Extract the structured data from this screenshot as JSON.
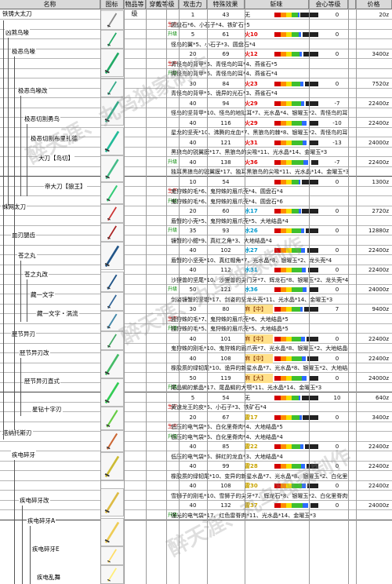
{
  "headers": {
    "name": "名称",
    "icon": "图标",
    "rarity": "物品等级",
    "wear": "穿戴等级",
    "attack": "攻击力",
    "effect": "特殊效果",
    "sharpness": "斩味",
    "affinity": "会心等级",
    "slots": "",
    "price": "价格"
  },
  "watermark": "醉天涯、丸乌独家制作",
  "weapons": [
    {
      "name": "铁铸大太刀",
      "rarity": "1"
    },
    {
      "name": "凶煞鸟喙",
      "rarity": "5"
    },
    {
      "name": "极恶鸟喙",
      "rarity": "20"
    },
    {
      "name": "极恶鸟喙改",
      "rarity": "30"
    },
    {
      "name": "极恶切割勇鸟",
      "rarity": "40"
    },
    {
      "name": "极恶切割布里扎德",
      "rarity": "45"
    },
    {
      "name": "大刀【鸟切】",
      "rarity": "50"
    },
    {
      "name": "帝大刀【狼王】",
      "rarity": "55"
    },
    {
      "name": "蛛网太刀",
      "rarity": "10"
    },
    {
      "name": "血刃腿齿",
      "rarity": "20"
    },
    {
      "name": "苍之丸",
      "rarity": "35"
    },
    {
      "name": "苍之丸改",
      "rarity": "40"
    },
    {
      "name": "藏一文字",
      "rarity": "45"
    },
    {
      "name": "藏一文字・涡流",
      "rarity": "50"
    },
    {
      "name": "胫节异刃",
      "rarity": "30"
    },
    {
      "name": "胫节异刃改",
      "rarity": "40"
    },
    {
      "name": "胫节异刃直式",
      "rarity": "45"
    },
    {
      "name": "星钻十字刃",
      "rarity": "50"
    },
    {
      "name": "塔纳托斯刃",
      "rarity": "5"
    },
    {
      "name": "疾电碎牙",
      "rarity": "20"
    },
    {
      "name": "疾电碎牙改",
      "rarity": "40"
    },
    {
      "name": "疾电碎牙A",
      "rarity": "40"
    },
    {
      "name": "疾电碎牙E",
      "rarity": "50"
    },
    {
      "name": "疾电乱舞",
      "rarity": "55"
    }
  ],
  "rows": [
    {
      "type": "",
      "lvl": "1",
      "atk": "43",
      "eff": "无",
      "aff": "0",
      "slot": "",
      "price": "20z",
      "mat": ""
    },
    {
      "type": "生产",
      "lvl": "5",
      "atk": "",
      "eff": "",
      "aff": "",
      "slot": "",
      "price": "640z",
      "mat": "圆盘石*6、小石子*4、铁矿石*5"
    },
    {
      "type": "升级",
      "lvl": "5",
      "atk": "61",
      "eff": "火10",
      "aff": "0",
      "slot": "",
      "price": "",
      "mat": ""
    },
    {
      "type": "",
      "lvl": "",
      "atk": "",
      "eff": "",
      "aff": "",
      "slot": "",
      "price": "",
      "mat": "怪鸟的翼*5、小石子*3、圆盘石*4"
    },
    {
      "type": "",
      "lvl": "20",
      "atk": "69",
      "eff": "火12",
      "aff": "0",
      "slot": "",
      "price": "3400z",
      "mat": ""
    },
    {
      "type": "生产",
      "lvl": "",
      "atk": "",
      "eff": "",
      "aff": "",
      "slot": "",
      "price": "2720z",
      "mat": "青怪鸟的背甲*6、青怪鸟的耳*4、燕雀石*5"
    },
    {
      "type": "升级",
      "lvl": "",
      "atk": "",
      "eff": "",
      "aff": "",
      "slot": "",
      "price": "",
      "mat": "青怪鸟的背甲*6、青怪鸟的耳*4、燕雀石*4"
    },
    {
      "type": "",
      "lvl": "30",
      "atk": "84",
      "eff": "火23",
      "aff": "0",
      "slot": "",
      "price": "7520z",
      "mat": ""
    },
    {
      "type": "",
      "lvl": "",
      "atk": "",
      "eff": "",
      "aff": "",
      "slot": "",
      "price": "",
      "mat": "青怪鸟的背甲*5、诡异的光石*3、燕雀石*4"
    },
    {
      "type": "",
      "lvl": "40",
      "atk": "94",
      "eff": "火29",
      "aff": "-7",
      "slot": "",
      "price": "22400z",
      "mat": ""
    },
    {
      "type": "",
      "lvl": "",
      "atk": "",
      "eff": "",
      "aff": "",
      "slot": "",
      "price": "",
      "mat": "怪鸟的坚背甲*10、怪鸟的地狱耳*7、光水晶*4、银曜玉*2、青怪鸟的耳*4"
    },
    {
      "type": "",
      "lvl": "40",
      "atk": "116",
      "eff": "火29",
      "aff": "-10",
      "slot": "",
      "price": "22400z",
      "mat": ""
    },
    {
      "type": "",
      "lvl": "",
      "atk": "",
      "eff": "",
      "aff": "",
      "slot": "",
      "price": "",
      "mat": "星龙的坚壳*10、沸腾的龙血*7、黑狼鸟的棘*8、银曜玉*2、青怪鸟的耳*4"
    },
    {
      "type": "",
      "lvl": "40",
      "atk": "121",
      "eff": "火31",
      "aff": "-13",
      "slot": "",
      "price": "24000z",
      "mat": ""
    },
    {
      "type": "",
      "lvl": "",
      "atk": "",
      "eff": "",
      "aff": "",
      "slot": "",
      "price": "",
      "mat": "黑狼鸟的锐翼膜*17、黑狼鸟的尖喙*11、光水晶*14、金曜玉*3"
    },
    {
      "type": "升级",
      "lvl": "40",
      "atk": "138",
      "eff": "火36",
      "aff": "-7",
      "slot": "",
      "price": "22400z",
      "mat": ""
    },
    {
      "type": "",
      "lvl": "55",
      "atk": "",
      "eff": "",
      "aff": "",
      "slot": "",
      "price": "",
      "mat": "独耳黑狼鸟的锐翼膜*17、独耳黑狼鸟的尖喙*11、光水晶*14、金曜玉*3"
    },
    {
      "type": "",
      "lvl": "10",
      "atk": "54",
      "eff": "",
      "aff": "0",
      "slot": "",
      "price": "1300z",
      "mat": ""
    },
    {
      "type": "生产",
      "lvl": "",
      "atk": "",
      "eff": "",
      "aff": "",
      "slot": "",
      "price": "1040z",
      "mat": "鬼狩蛛的毛*6、鬼狩蛛的眉爪壳*4、圆盘石*4"
    },
    {
      "type": "升级",
      "lvl": "",
      "atk": "",
      "eff": "",
      "aff": "",
      "slot": "",
      "price": "",
      "mat": "鬼狩蛛的毛*6、鬼狩蛛的眉爪壳*4、圆盘石*6"
    },
    {
      "type": "",
      "lvl": "20",
      "atk": "60",
      "eff": "水17",
      "aff": "0",
      "slot": "",
      "price": "2720z",
      "mat": ""
    },
    {
      "type": "",
      "lvl": "",
      "atk": "",
      "eff": "",
      "aff": "",
      "slot": "",
      "price": "",
      "mat": "盾蟹的小壳*5、鬼狩蛛的眉爪壳*5、大地结晶*4"
    },
    {
      "type": "升级",
      "lvl": "35",
      "atk": "93",
      "eff": "水26",
      "aff": "0",
      "slot": "",
      "price": "12880z",
      "mat": ""
    },
    {
      "type": "",
      "lvl": "",
      "atk": "",
      "eff": "",
      "aff": "",
      "slot": "",
      "price": "",
      "mat": "镰蟹的小鳃*9、真红之角*3、大地结晶*4"
    },
    {
      "type": "",
      "lvl": "40",
      "atk": "102",
      "eff": "水27",
      "aff": "0",
      "slot": "",
      "price": "22400z",
      "mat": ""
    },
    {
      "type": "",
      "lvl": "",
      "atk": "",
      "eff": "",
      "aff": "",
      "slot": "",
      "price": "",
      "mat": "盾蟹的小坚壳*10、真红帽角*7、光水晶*8、银曜玉*2、龙头壳*4"
    },
    {
      "type": "",
      "lvl": "40",
      "atk": "112",
      "eff": "水31",
      "aff": "0",
      "slot": "",
      "price": "22400z",
      "mat": ""
    },
    {
      "type": "",
      "lvl": "",
      "atk": "",
      "eff": "",
      "aff": "",
      "slot": "",
      "price": "",
      "mat": "沙狸兽的坚尾*10、沙狸兽的尖门牙*7、辉龙石*8、银曜玉*2、龙头壳*4"
    },
    {
      "type": "升级",
      "lvl": "50",
      "atk": "121",
      "eff": "水36",
      "aff": "0",
      "slot": "",
      "price": "24000z",
      "mat": ""
    },
    {
      "type": "",
      "lvl": "",
      "atk": "",
      "eff": "",
      "aff": "",
      "slot": "",
      "price": "",
      "mat": "剑姿镰蟹的坚钳*17、剑姿的坚龙头壳*11、光水晶*14、金曜玉*3"
    },
    {
      "type": "",
      "lvl": "30",
      "atk": "80",
      "eff": "麻【中】",
      "aff": "7",
      "slot": "",
      "price": "9400z",
      "mat": ""
    },
    {
      "type": "生产",
      "lvl": "",
      "atk": "",
      "eff": "",
      "aff": "",
      "slot": "",
      "price": "7520z",
      "mat": "独狩蛛的毛*7、鬼狩蛛的眉爪壳*6、大地结晶*5"
    },
    {
      "type": "升级",
      "lvl": "",
      "atk": "",
      "eff": "",
      "aff": "",
      "slot": "",
      "price": "",
      "mat": "独狩蛛的毛*5、鬼狩蛛的眉爪壳*5、大地结晶*5"
    },
    {
      "type": "",
      "lvl": "40",
      "atk": "101",
      "eff": "麻【中】",
      "aff": "0",
      "slot": "",
      "price": "22400z",
      "mat": ""
    },
    {
      "type": "",
      "lvl": "",
      "atk": "",
      "eff": "",
      "aff": "",
      "slot": "",
      "price": "",
      "mat": "鬼狩蛛的刚毛*10、鬼狩蛛的眉爪壳*7、光水晶*8、银曜玉*2、大地结晶*4"
    },
    {
      "type": "",
      "lvl": "40",
      "atk": "108",
      "eff": "麻【中】",
      "aff": "0",
      "slot": "",
      "price": "22400z",
      "mat": ""
    },
    {
      "type": "",
      "lvl": "",
      "atk": "",
      "eff": "",
      "aff": "",
      "slot": "",
      "price": "",
      "mat": "橡胶质的绿韧尾*10、诡异的新星水晶*7、光水晶*8、银曜玉*2、大地结晶*4"
    },
    {
      "type": "",
      "lvl": "50",
      "atk": "119",
      "eff": "麻【大】",
      "aff": "0",
      "slot": "",
      "price": "24000z",
      "mat": ""
    },
    {
      "type": "升级",
      "lvl": "",
      "atk": "",
      "eff": "",
      "aff": "",
      "slot": "",
      "price": "",
      "mat": "尾晶蝎的紫晶*17、尾晶蝎的大颚*11、光水晶*14、金曜玉*3"
    },
    {
      "type": "",
      "lvl": "5",
      "atk": "54",
      "eff": "无",
      "aff": "10",
      "slot": "",
      "price": "640z",
      "mat": ""
    },
    {
      "type": "生产",
      "lvl": "",
      "atk": "",
      "eff": "",
      "aff": "",
      "slot": "",
      "price": "",
      "mat": "黄速龙王的皮*5、小石子*3、铁矿石*4"
    },
    {
      "type": "",
      "lvl": "20",
      "atk": "67",
      "eff": "雷17",
      "aff": "0",
      "slot": "",
      "price": "3400z",
      "mat": ""
    },
    {
      "type": "生产",
      "lvl": "",
      "atk": "",
      "eff": "",
      "aff": "",
      "slot": "",
      "price": "2720z",
      "mat": "低压的电气袋*5、白化里脊肉*4、大地结晶*5"
    },
    {
      "type": "升级",
      "lvl": "",
      "atk": "",
      "eff": "",
      "aff": "",
      "slot": "",
      "price": "",
      "mat": "低压的电气袋*6、白化里脊肉*4、大地结晶*4"
    },
    {
      "type": "",
      "lvl": "40",
      "atk": "85",
      "eff": "雷22",
      "aff": "0",
      "slot": "",
      "price": "22400z",
      "mat": ""
    },
    {
      "type": "",
      "lvl": "",
      "atk": "",
      "eff": "",
      "aff": "",
      "slot": "",
      "price": "",
      "mat": "低压的电气袋*5、鲜红的龙血*3、大地结晶*4"
    },
    {
      "type": "",
      "lvl": "40",
      "atk": "99",
      "eff": "雷28",
      "aff": "0",
      "slot": "",
      "price": "22400z",
      "mat": ""
    },
    {
      "type": "",
      "lvl": "",
      "atk": "",
      "eff": "",
      "aff": "",
      "slot": "",
      "price": "",
      "mat": "橡胶质的绿韧尾*10、变异的新星水晶*7、光水晶*8、银曜玉*2、白化里脊肉*4"
    },
    {
      "type": "",
      "lvl": "40",
      "atk": "108",
      "eff": "雷30",
      "aff": "0",
      "slot": "",
      "price": "22400z",
      "mat": ""
    },
    {
      "type": "",
      "lvl": "",
      "atk": "",
      "eff": "",
      "aff": "",
      "slot": "",
      "price": "",
      "mat": "雪狮子的刚毛*10、雪狮子的尖牙*7、辉龙石*8、银曜玉*2、白化里脊肉*4"
    },
    {
      "type": "",
      "lvl": "40",
      "atk": "132",
      "eff": "雷37",
      "aff": "0",
      "slot": "",
      "price": "24000z",
      "mat": ""
    },
    {
      "type": "升级",
      "lvl": "",
      "atk": "",
      "eff": "",
      "aff": "",
      "slot": "",
      "price": "",
      "mat": "强光的电气袋*17、红色雷脊肉*11、光水晶*14、金曜玉*3"
    }
  ]
}
